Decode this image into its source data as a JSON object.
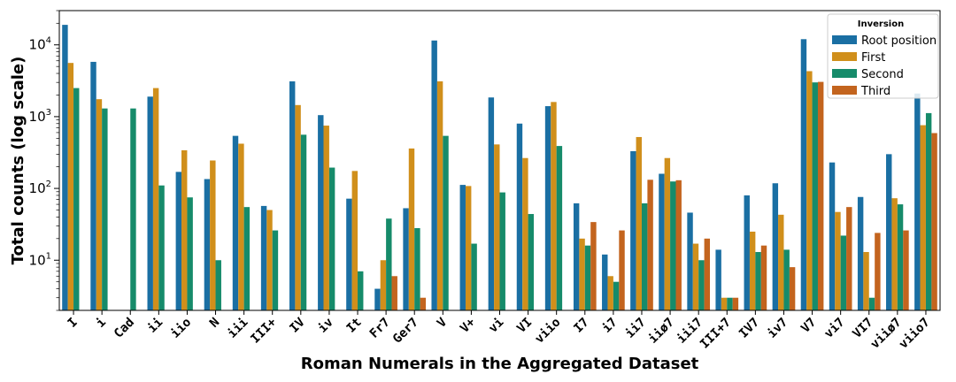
{
  "chart_data": {
    "type": "bar",
    "yscale": "log",
    "ylim": [
      2,
      30000
    ],
    "ylabel": "Total counts (log scale)",
    "xlabel": "Roman Numerals in the Aggregated Dataset",
    "y_ticks": [
      {
        "value": 10,
        "base": "10",
        "exp": "1"
      },
      {
        "value": 100,
        "base": "10",
        "exp": "2"
      },
      {
        "value": 1000,
        "base": "10",
        "exp": "3"
      },
      {
        "value": 10000,
        "base": "10",
        "exp": "4"
      }
    ],
    "legend": {
      "title": "Inversion",
      "placement": "top-right"
    },
    "categories": [
      "I",
      "i",
      "Cad",
      "ii",
      "iio",
      "N",
      "iii",
      "III+",
      "IV",
      "iv",
      "It",
      "Fr7",
      "Ger7",
      "V",
      "V+",
      "vi",
      "VI",
      "viio",
      "I7",
      "i7",
      "ii7",
      "iiø7",
      "iii7",
      "III+7",
      "IV7",
      "iv7",
      "V7",
      "vi7",
      "VI7",
      "viiø7",
      "viio7"
    ],
    "series": [
      {
        "name": "Root position",
        "color": "#1a6fa3",
        "values": [
          19000,
          5800,
          null,
          1900,
          170,
          135,
          540,
          57,
          3100,
          1050,
          72,
          4,
          53,
          11500,
          112,
          1850,
          800,
          1400,
          62,
          12,
          330,
          160,
          46,
          14,
          80,
          118,
          12000,
          230,
          76,
          300,
          2100
        ]
      },
      {
        "name": "First",
        "color": "#d08f1b",
        "values": [
          5600,
          1750,
          null,
          2500,
          340,
          245,
          420,
          50,
          1450,
          750,
          175,
          10,
          360,
          3100,
          108,
          410,
          265,
          1600,
          20,
          6,
          520,
          265,
          17,
          3,
          25,
          43,
          4300,
          47,
          13,
          73,
          760
        ]
      },
      {
        "name": "Second",
        "color": "#168b6a",
        "values": [
          2500,
          1300,
          1300,
          110,
          75,
          10,
          55,
          26,
          560,
          195,
          7,
          38,
          28,
          540,
          17,
          88,
          44,
          390,
          16,
          5,
          62,
          125,
          10,
          3,
          13,
          14,
          3000,
          22,
          3,
          60,
          1120
        ]
      },
      {
        "name": "Third",
        "color": "#c3641e",
        "values": [
          null,
          null,
          null,
          null,
          null,
          null,
          null,
          null,
          null,
          null,
          null,
          6,
          3,
          null,
          null,
          null,
          null,
          null,
          34,
          26,
          132,
          130,
          20,
          3,
          16,
          8,
          3050,
          55,
          24,
          26,
          590
        ]
      }
    ]
  }
}
